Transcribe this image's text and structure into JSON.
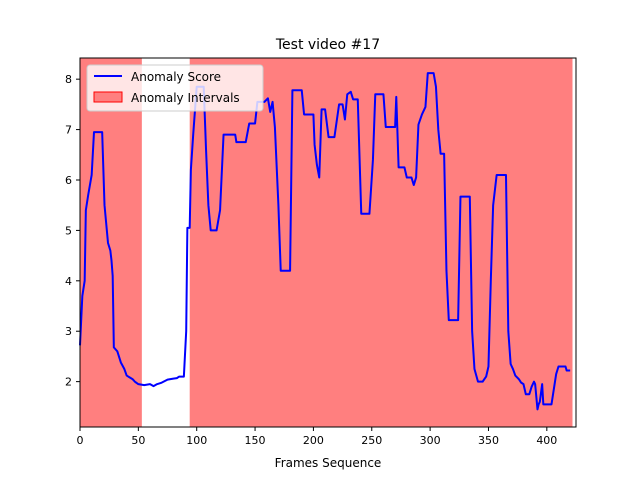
{
  "chart_data": {
    "type": "line",
    "title": "Test video #17",
    "xlabel": "Frames Sequence",
    "ylabel": "",
    "xlim": [
      0,
      425
    ],
    "ylim": [
      1.1,
      8.42
    ],
    "x_ticks": [
      0,
      50,
      100,
      150,
      200,
      250,
      300,
      350,
      400
    ],
    "y_ticks": [
      2,
      3,
      4,
      5,
      6,
      7,
      8
    ],
    "grid": false,
    "legend": {
      "placement": "top-left"
    },
    "series": [
      {
        "name": "Anomaly Score",
        "color": "#0000ff",
        "points": [
          [
            0,
            2.72
          ],
          [
            2,
            3.7
          ],
          [
            4,
            4.0
          ],
          [
            5,
            5.4
          ],
          [
            7,
            5.7
          ],
          [
            10,
            6.1
          ],
          [
            12,
            6.95
          ],
          [
            19,
            6.95
          ],
          [
            21,
            5.5
          ],
          [
            24,
            4.75
          ],
          [
            26,
            4.6
          ],
          [
            27,
            4.4
          ],
          [
            28,
            4.1
          ],
          [
            29,
            2.68
          ],
          [
            32,
            2.6
          ],
          [
            35,
            2.38
          ],
          [
            38,
            2.25
          ],
          [
            40,
            2.12
          ],
          [
            45,
            2.05
          ],
          [
            47,
            2.0
          ],
          [
            50,
            1.95
          ],
          [
            55,
            1.93
          ],
          [
            60,
            1.95
          ],
          [
            63,
            1.91
          ],
          [
            66,
            1.95
          ],
          [
            70,
            1.98
          ],
          [
            75,
            2.04
          ],
          [
            80,
            2.06
          ],
          [
            83,
            2.07
          ],
          [
            85,
            2.1
          ],
          [
            89,
            2.1
          ],
          [
            91,
            3.0
          ],
          [
            92,
            5.05
          ],
          [
            94,
            5.05
          ],
          [
            95,
            6.2
          ],
          [
            97,
            6.9
          ],
          [
            100,
            7.85
          ],
          [
            106,
            7.85
          ],
          [
            108,
            6.6
          ],
          [
            110,
            5.5
          ],
          [
            112,
            5.0
          ],
          [
            117,
            5.0
          ],
          [
            120,
            5.4
          ],
          [
            123,
            6.9
          ],
          [
            133,
            6.9
          ],
          [
            134,
            6.75
          ],
          [
            142,
            6.75
          ],
          [
            145,
            7.12
          ],
          [
            150,
            7.12
          ],
          [
            152,
            7.55
          ],
          [
            158,
            7.55
          ],
          [
            161,
            7.62
          ],
          [
            163,
            7.35
          ],
          [
            165,
            7.55
          ],
          [
            167,
            7.05
          ],
          [
            170,
            5.5
          ],
          [
            172,
            4.2
          ],
          [
            180,
            4.2
          ],
          [
            182,
            7.78
          ],
          [
            190,
            7.78
          ],
          [
            192,
            7.3
          ],
          [
            200,
            7.3
          ],
          [
            201,
            6.7
          ],
          [
            203,
            6.3
          ],
          [
            205,
            6.05
          ],
          [
            207,
            7.4
          ],
          [
            210,
            7.4
          ],
          [
            213,
            6.85
          ],
          [
            218,
            6.85
          ],
          [
            222,
            7.5
          ],
          [
            225,
            7.5
          ],
          [
            227,
            7.2
          ],
          [
            229,
            7.7
          ],
          [
            232,
            7.75
          ],
          [
            234,
            7.6
          ],
          [
            238,
            7.6
          ],
          [
            241,
            5.33
          ],
          [
            248,
            5.33
          ],
          [
            251,
            6.4
          ],
          [
            253,
            7.7
          ],
          [
            260,
            7.7
          ],
          [
            262,
            7.05
          ],
          [
            270,
            7.05
          ],
          [
            271,
            7.65
          ],
          [
            273,
            6.25
          ],
          [
            278,
            6.25
          ],
          [
            280,
            6.05
          ],
          [
            284,
            6.05
          ],
          [
            286,
            5.9
          ],
          [
            288,
            6.05
          ],
          [
            290,
            7.1
          ],
          [
            293,
            7.3
          ],
          [
            296,
            7.45
          ],
          [
            298,
            8.12
          ],
          [
            303,
            8.12
          ],
          [
            305,
            7.85
          ],
          [
            307,
            7.0
          ],
          [
            309,
            6.52
          ],
          [
            312,
            6.52
          ],
          [
            314,
            4.2
          ],
          [
            316,
            3.22
          ],
          [
            324,
            3.22
          ],
          [
            326,
            5.67
          ],
          [
            334,
            5.67
          ],
          [
            336,
            3.0
          ],
          [
            338,
            2.25
          ],
          [
            341,
            2.0
          ],
          [
            345,
            2.0
          ],
          [
            348,
            2.1
          ],
          [
            350,
            2.3
          ],
          [
            352,
            4.0
          ],
          [
            354,
            5.5
          ],
          [
            357,
            6.1
          ],
          [
            365,
            6.1
          ],
          [
            367,
            3.0
          ],
          [
            369,
            2.35
          ],
          [
            371,
            2.25
          ],
          [
            373,
            2.12
          ],
          [
            376,
            2.05
          ],
          [
            378,
            1.98
          ],
          [
            380,
            1.95
          ],
          [
            382,
            1.75
          ],
          [
            385,
            1.75
          ],
          [
            387,
            1.9
          ],
          [
            389,
            2.0
          ],
          [
            390,
            1.95
          ],
          [
            392,
            1.45
          ],
          [
            393,
            1.55
          ],
          [
            394,
            1.6
          ],
          [
            396,
            1.95
          ],
          [
            397,
            1.55
          ],
          [
            404,
            1.55
          ],
          [
            406,
            1.85
          ],
          [
            408,
            2.15
          ],
          [
            410,
            2.3
          ],
          [
            416,
            2.3
          ],
          [
            417,
            2.22
          ],
          [
            420,
            2.22
          ]
        ]
      }
    ],
    "intervals": {
      "name": "Anomaly Intervals",
      "color": "#ff7f7f",
      "ranges": [
        [
          0,
          53
        ],
        [
          94,
          422
        ]
      ]
    }
  }
}
